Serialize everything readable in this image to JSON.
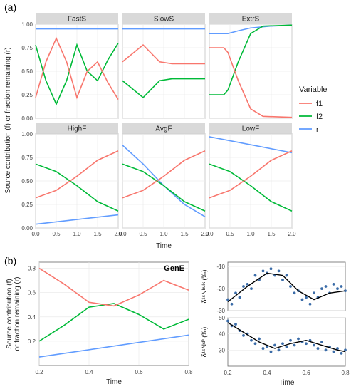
{
  "colors": {
    "f1": "#f8766d",
    "f2": "#00ba38",
    "r": "#619cff",
    "facet_bg": "#d9d9d9",
    "grid": "#ebebeb",
    "scatter": "#3b6ca8",
    "fit": "#000000",
    "bg": "#ffffff"
  },
  "labels": {
    "panel_a": "(a)",
    "panel_b": "(b)",
    "x_axis": "Time",
    "y_axis_a": "Source contribution (f) or fraction remaining (r)",
    "y_axis_b1": "Source contribution (f)\nor fraction remaining (r)",
    "legend_title": "Variable",
    "legend_items": [
      "f1",
      "f2",
      "r"
    ],
    "scatter_top": "δ¹⁵Nᵇᵘˡᵏ (‰)",
    "scatter_bot": "δ¹⁵Nˢᴾ (‰)",
    "gene": "GenE"
  },
  "panelA": {
    "facets": [
      "FastS",
      "SlowS",
      "ExtrS",
      "HighF",
      "AvgF",
      "LowF"
    ],
    "xlim": [
      0,
      2
    ],
    "xticks": [
      0.0,
      0.5,
      1.0,
      1.5,
      2.0
    ],
    "ylim": [
      0,
      1
    ],
    "yticks": [
      0.0,
      0.25,
      0.5,
      0.75,
      1.0
    ],
    "data": {
      "FastS": {
        "f1": [
          [
            0,
            0.22
          ],
          [
            0.25,
            0.6
          ],
          [
            0.5,
            0.85
          ],
          [
            0.75,
            0.6
          ],
          [
            1.0,
            0.22
          ],
          [
            1.25,
            0.5
          ],
          [
            1.5,
            0.6
          ],
          [
            1.75,
            0.38
          ],
          [
            2.0,
            0.2
          ]
        ],
        "f2": [
          [
            0,
            0.78
          ],
          [
            0.25,
            0.4
          ],
          [
            0.5,
            0.15
          ],
          [
            0.75,
            0.4
          ],
          [
            1.0,
            0.78
          ],
          [
            1.25,
            0.5
          ],
          [
            1.5,
            0.4
          ],
          [
            1.75,
            0.62
          ],
          [
            2.0,
            0.8
          ]
        ],
        "r": [
          [
            0,
            0.95
          ],
          [
            2,
            0.95
          ]
        ]
      },
      "SlowS": {
        "f1": [
          [
            0,
            0.6
          ],
          [
            0.5,
            0.78
          ],
          [
            0.9,
            0.6
          ],
          [
            1.2,
            0.58
          ],
          [
            2.0,
            0.58
          ]
        ],
        "f2": [
          [
            0,
            0.4
          ],
          [
            0.5,
            0.22
          ],
          [
            0.9,
            0.4
          ],
          [
            1.2,
            0.42
          ],
          [
            2.0,
            0.42
          ]
        ],
        "r": [
          [
            0,
            0.95
          ],
          [
            2,
            0.95
          ]
        ]
      },
      "ExtrS": {
        "f1": [
          [
            0,
            0.75
          ],
          [
            0.35,
            0.75
          ],
          [
            0.45,
            0.7
          ],
          [
            0.7,
            0.4
          ],
          [
            1.0,
            0.1
          ],
          [
            1.3,
            0.02
          ],
          [
            2.0,
            0.01
          ]
        ],
        "f2": [
          [
            0,
            0.25
          ],
          [
            0.35,
            0.25
          ],
          [
            0.45,
            0.3
          ],
          [
            0.7,
            0.6
          ],
          [
            1.0,
            0.9
          ],
          [
            1.3,
            0.98
          ],
          [
            2.0,
            0.99
          ]
        ],
        "r": [
          [
            0,
            0.9
          ],
          [
            0.45,
            0.9
          ],
          [
            0.7,
            0.93
          ],
          [
            1.0,
            0.96
          ],
          [
            1.5,
            0.98
          ],
          [
            2.0,
            0.99
          ]
        ]
      },
      "HighF": {
        "f1": [
          [
            0,
            0.32
          ],
          [
            0.5,
            0.4
          ],
          [
            1.0,
            0.55
          ],
          [
            1.5,
            0.72
          ],
          [
            2.0,
            0.82
          ]
        ],
        "f2": [
          [
            0,
            0.68
          ],
          [
            0.5,
            0.6
          ],
          [
            1.0,
            0.45
          ],
          [
            1.5,
            0.28
          ],
          [
            2.0,
            0.18
          ]
        ],
        "r": [
          [
            0,
            0.04
          ],
          [
            2.0,
            0.14
          ]
        ]
      },
      "AvgF": {
        "f1": [
          [
            0,
            0.32
          ],
          [
            0.5,
            0.4
          ],
          [
            1.0,
            0.55
          ],
          [
            1.5,
            0.72
          ],
          [
            2.0,
            0.82
          ]
        ],
        "f2": [
          [
            0,
            0.68
          ],
          [
            0.5,
            0.6
          ],
          [
            1.0,
            0.45
          ],
          [
            1.5,
            0.28
          ],
          [
            2.0,
            0.18
          ]
        ],
        "r": [
          [
            0,
            0.88
          ],
          [
            0.5,
            0.68
          ],
          [
            1.0,
            0.45
          ],
          [
            1.5,
            0.25
          ],
          [
            2.0,
            0.12
          ]
        ]
      },
      "LowF": {
        "f1": [
          [
            0,
            0.32
          ],
          [
            0.5,
            0.4
          ],
          [
            1.0,
            0.55
          ],
          [
            1.5,
            0.72
          ],
          [
            2.0,
            0.82
          ]
        ],
        "f2": [
          [
            0,
            0.68
          ],
          [
            0.5,
            0.6
          ],
          [
            1.0,
            0.45
          ],
          [
            1.5,
            0.28
          ],
          [
            2.0,
            0.18
          ]
        ],
        "r": [
          [
            0,
            0.97
          ],
          [
            2.0,
            0.8
          ]
        ]
      }
    }
  },
  "panelB": {
    "left": {
      "xlim": [
        0.2,
        0.8
      ],
      "xticks": [
        0.2,
        0.4,
        0.6,
        0.8
      ],
      "ylim": [
        0,
        0.85
      ],
      "yticks": [
        0.2,
        0.4,
        0.6,
        0.8
      ],
      "f1": [
        [
          0.2,
          0.8
        ],
        [
          0.3,
          0.67
        ],
        [
          0.4,
          0.52
        ],
        [
          0.5,
          0.49
        ],
        [
          0.6,
          0.58
        ],
        [
          0.7,
          0.7
        ],
        [
          0.8,
          0.62
        ]
      ],
      "f2": [
        [
          0.2,
          0.2
        ],
        [
          0.3,
          0.33
        ],
        [
          0.4,
          0.48
        ],
        [
          0.5,
          0.51
        ],
        [
          0.6,
          0.42
        ],
        [
          0.7,
          0.3
        ],
        [
          0.8,
          0.38
        ]
      ],
      "r": [
        [
          0.2,
          0.07
        ],
        [
          0.8,
          0.25
        ]
      ]
    },
    "scatter_top": {
      "xlim": [
        0.2,
        0.8
      ],
      "ylim": [
        -30,
        -8
      ],
      "yticks": [
        -10,
        -20,
        -30
      ],
      "points": [
        [
          0.2,
          -25
        ],
        [
          0.22,
          -27
        ],
        [
          0.24,
          -22
        ],
        [
          0.26,
          -24
        ],
        [
          0.28,
          -19
        ],
        [
          0.3,
          -18
        ],
        [
          0.32,
          -20
        ],
        [
          0.34,
          -14
        ],
        [
          0.36,
          -16
        ],
        [
          0.38,
          -12
        ],
        [
          0.4,
          -13
        ],
        [
          0.42,
          -11
        ],
        [
          0.44,
          -14
        ],
        [
          0.46,
          -12
        ],
        [
          0.48,
          -16
        ],
        [
          0.5,
          -14
        ],
        [
          0.52,
          -19
        ],
        [
          0.54,
          -22
        ],
        [
          0.56,
          -21
        ],
        [
          0.58,
          -25
        ],
        [
          0.6,
          -24
        ],
        [
          0.62,
          -27
        ],
        [
          0.64,
          -22
        ],
        [
          0.66,
          -24
        ],
        [
          0.68,
          -20
        ],
        [
          0.7,
          -19
        ],
        [
          0.72,
          -22
        ],
        [
          0.74,
          -18
        ],
        [
          0.76,
          -20
        ],
        [
          0.78,
          -19
        ],
        [
          0.8,
          -21
        ]
      ],
      "fit": [
        [
          0.2,
          -26
        ],
        [
          0.3,
          -19
        ],
        [
          0.4,
          -13
        ],
        [
          0.48,
          -14
        ],
        [
          0.56,
          -21
        ],
        [
          0.64,
          -25
        ],
        [
          0.72,
          -22
        ],
        [
          0.8,
          -21
        ]
      ]
    },
    "scatter_bot": {
      "xlim": [
        0.2,
        0.8
      ],
      "ylim": [
        20,
        50
      ],
      "yticks": [
        30,
        40,
        50
      ],
      "points": [
        [
          0.2,
          48
        ],
        [
          0.22,
          45
        ],
        [
          0.24,
          46
        ],
        [
          0.26,
          42
        ],
        [
          0.28,
          39
        ],
        [
          0.3,
          40
        ],
        [
          0.32,
          36
        ],
        [
          0.34,
          34
        ],
        [
          0.36,
          37
        ],
        [
          0.38,
          31
        ],
        [
          0.4,
          32
        ],
        [
          0.42,
          29
        ],
        [
          0.44,
          33
        ],
        [
          0.46,
          30
        ],
        [
          0.48,
          34
        ],
        [
          0.5,
          32
        ],
        [
          0.52,
          36
        ],
        [
          0.54,
          33
        ],
        [
          0.56,
          37
        ],
        [
          0.58,
          35
        ],
        [
          0.6,
          34
        ],
        [
          0.62,
          36
        ],
        [
          0.64,
          33
        ],
        [
          0.66,
          31
        ],
        [
          0.68,
          35
        ],
        [
          0.7,
          30
        ],
        [
          0.72,
          32
        ],
        [
          0.74,
          29
        ],
        [
          0.76,
          31
        ],
        [
          0.78,
          28
        ],
        [
          0.8,
          30
        ]
      ],
      "fit": [
        [
          0.2,
          47
        ],
        [
          0.28,
          41
        ],
        [
          0.36,
          35
        ],
        [
          0.44,
          31
        ],
        [
          0.52,
          34
        ],
        [
          0.6,
          36
        ],
        [
          0.68,
          33
        ],
        [
          0.76,
          30
        ],
        [
          0.8,
          29
        ]
      ]
    }
  }
}
